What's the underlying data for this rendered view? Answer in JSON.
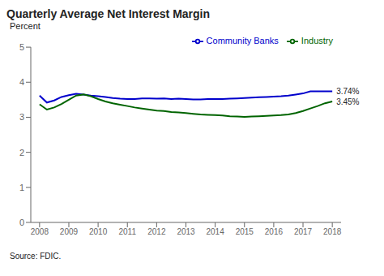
{
  "chart_data": {
    "type": "line",
    "title": "Quarterly Average Net Interest Margin",
    "ylabel": "Percent",
    "source": "Source: FDIC.",
    "x": [
      2008,
      2008.25,
      2008.5,
      2008.75,
      2009,
      2009.25,
      2009.5,
      2009.75,
      2010,
      2010.25,
      2010.5,
      2010.75,
      2011,
      2011.25,
      2011.5,
      2011.75,
      2012,
      2012.25,
      2012.5,
      2012.75,
      2013,
      2013.25,
      2013.5,
      2013.75,
      2014,
      2014.25,
      2014.5,
      2014.75,
      2015,
      2015.25,
      2015.5,
      2015.75,
      2016,
      2016.25,
      2016.5,
      2016.75,
      2017,
      2017.25,
      2017.5,
      2017.75,
      2018
    ],
    "series": [
      {
        "name": "Community Banks",
        "color": "#0000cc",
        "values": [
          3.62,
          3.42,
          3.48,
          3.58,
          3.63,
          3.67,
          3.65,
          3.62,
          3.6,
          3.58,
          3.55,
          3.53,
          3.52,
          3.52,
          3.54,
          3.54,
          3.53,
          3.54,
          3.52,
          3.53,
          3.52,
          3.51,
          3.51,
          3.52,
          3.52,
          3.52,
          3.53,
          3.54,
          3.55,
          3.56,
          3.57,
          3.58,
          3.59,
          3.6,
          3.62,
          3.65,
          3.68,
          3.74,
          3.74,
          3.74,
          3.74
        ]
      },
      {
        "name": "Industry",
        "color": "#006400",
        "values": [
          3.37,
          3.22,
          3.28,
          3.38,
          3.5,
          3.62,
          3.65,
          3.6,
          3.52,
          3.45,
          3.4,
          3.36,
          3.32,
          3.28,
          3.25,
          3.22,
          3.19,
          3.18,
          3.15,
          3.14,
          3.12,
          3.1,
          3.08,
          3.07,
          3.06,
          3.05,
          3.03,
          3.02,
          3.01,
          3.02,
          3.03,
          3.04,
          3.05,
          3.06,
          3.08,
          3.12,
          3.18,
          3.25,
          3.32,
          3.4,
          3.45
        ]
      }
    ],
    "annotations": [
      {
        "text": "3.74%",
        "x": 2018,
        "y": 3.74
      },
      {
        "text": "3.45%",
        "x": 2018,
        "y": 3.45
      }
    ],
    "xlim": [
      2007.7,
      2018.3
    ],
    "xticks": [
      2008,
      2009,
      2010,
      2011,
      2012,
      2013,
      2014,
      2015,
      2016,
      2017,
      2018
    ],
    "ylim": [
      0,
      5
    ],
    "yticks": [
      0,
      1,
      2,
      3,
      4,
      5
    ],
    "legend": "upper right",
    "grid": false
  }
}
